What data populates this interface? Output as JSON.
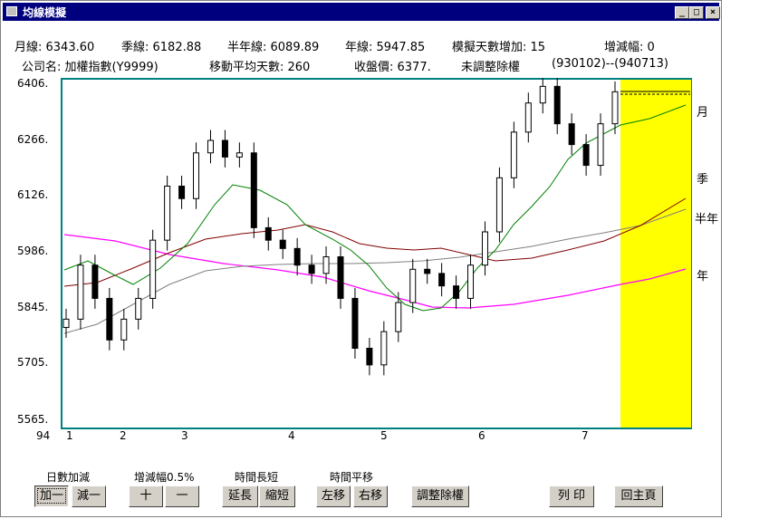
{
  "window": {
    "title": "均線模擬",
    "minimize_glyph": "_",
    "maximize_glyph": "□",
    "close_glyph": "×"
  },
  "info": {
    "line1": [
      "月線: 6343.60",
      "季線: 6182.88",
      "半年線: 6089.89",
      "年線: 5947.85",
      "模擬天數增加: 15",
      "增減幅: 0"
    ],
    "line2": [
      "公司名: 加權指數(Y9999)",
      "移動平均天數: 260",
      "收盤價: 6377.",
      "未調整除權",
      "(930102)--(940713)"
    ]
  },
  "chart_data": {
    "type": "candlestick",
    "y_ticks": [
      "6406.",
      "6266.",
      "6126.",
      "5986.",
      "5845.",
      "5705.",
      "5565."
    ],
    "ylim": [
      5565,
      6406
    ],
    "x_ticks": [
      "94",
      "1",
      "2",
      "3",
      "4",
      "5",
      "6",
      "7"
    ],
    "series_labels": [
      "月",
      "季",
      "半年",
      "年"
    ],
    "colors": {
      "monthly": "#008000",
      "quarterly": "#800000",
      "half_year": "#808080",
      "yearly": "#ff00ff",
      "extension_area": "#ffff00",
      "plot_border": "#008080"
    },
    "candles_approx_close": [
      5830,
      5960,
      5880,
      5780,
      5830,
      5880,
      6020,
      6150,
      6120,
      6230,
      6260,
      6220,
      6230,
      6050,
      6020,
      6000,
      5960,
      5940,
      5980,
      5880,
      5760,
      5720,
      5800,
      5870,
      5950,
      5940,
      5910,
      5880,
      5960,
      6040,
      6170,
      6280,
      6350,
      6390,
      6300,
      6250,
      6200,
      6300,
      6377
    ],
    "monthly_ma_approx": [
      5960,
      5920,
      5900,
      6000,
      6120,
      6150,
      6080,
      6000,
      5920,
      5850,
      5880,
      5960,
      6150,
      6280,
      6320,
      6360
    ],
    "quarterly_ma_approx": [
      5900,
      5920,
      5960,
      6000,
      6010,
      5990,
      5970,
      5960,
      6000,
      6100,
      6200
    ],
    "half_year_ma_approx": [
      5800,
      5880,
      5930,
      5950,
      5960,
      5970,
      5990,
      6030,
      6090
    ],
    "yearly_ma_approx": [
      5990,
      5980,
      5950,
      5910,
      5880,
      5870,
      5880,
      5900,
      5940
    ]
  },
  "controls": {
    "groups": [
      "日數加減",
      "增減幅0.5%",
      "時間長短",
      "時間平移"
    ],
    "buttons": {
      "add_one": "加一",
      "minus_one": "減一",
      "plus": "十",
      "minus": "一",
      "extend": "延長",
      "shorten": "縮短",
      "left_shift": "左移",
      "right_shift": "右移",
      "adjust_dividend": "調整除權",
      "print": "列 印",
      "back_home": "回主頁"
    }
  }
}
